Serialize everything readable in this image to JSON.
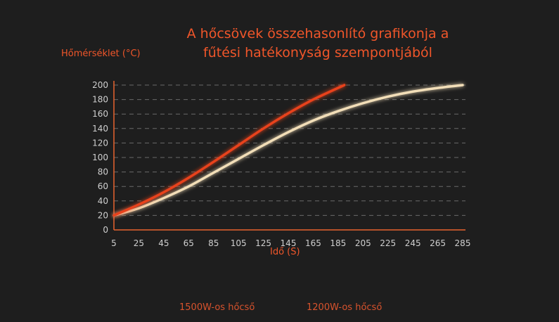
{
  "chart_data": {
    "type": "line",
    "title_lines": [
      "A hőcsövek összehasonlító grafikonja a",
      "fűtési hatékonyság szempontjából"
    ],
    "ylabel": "Hőmérséklet (°C)",
    "xlabel": "Idő (S)",
    "xlim": [
      5,
      285
    ],
    "ylim": [
      0,
      200
    ],
    "x_ticks": [
      5,
      25,
      45,
      65,
      85,
      105,
      125,
      145,
      165,
      185,
      205,
      225,
      245,
      265,
      285
    ],
    "y_ticks": [
      0,
      20,
      40,
      60,
      80,
      100,
      120,
      140,
      160,
      180,
      200
    ],
    "grid": "horizontal dashed",
    "legend_position": "bottom",
    "series": [
      {
        "name": "1500W-os hőcső",
        "color": "#e8431c",
        "legend_text_color": "#d8532d",
        "x": [
          5,
          25,
          45,
          65,
          85,
          105,
          125,
          145,
          165,
          190
        ],
        "y": [
          20,
          35,
          52,
          72,
          94,
          117,
          140,
          161,
          180,
          200
        ]
      },
      {
        "name": "1200W-os hőcső",
        "color": "#f2deb8",
        "legend_text_color": "#d8532d",
        "x": [
          5,
          25,
          45,
          65,
          85,
          105,
          125,
          145,
          165,
          185,
          205,
          225,
          245,
          265,
          285
        ],
        "y": [
          20,
          30,
          44,
          60,
          79,
          98,
          117,
          135,
          151,
          164,
          175,
          184,
          191,
          196,
          200
        ]
      }
    ]
  }
}
